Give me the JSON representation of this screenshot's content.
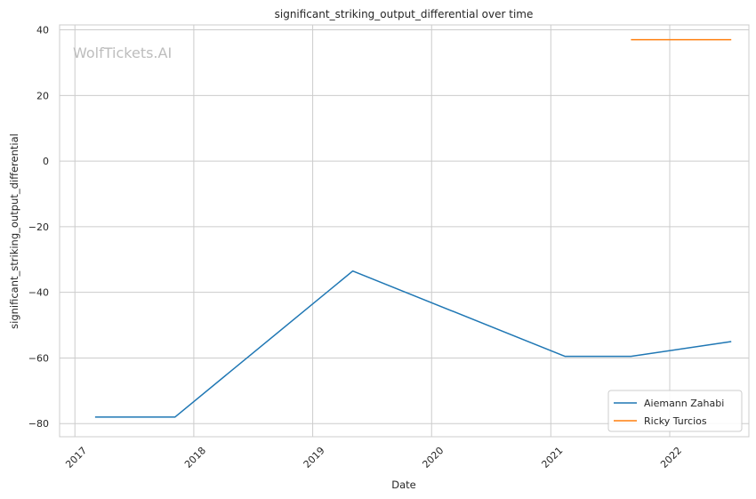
{
  "chart_data": {
    "type": "line",
    "title": "significant_striking_output_differential over time",
    "xlabel": "Date",
    "ylabel": "significant_striking_output_differential",
    "x_ticks": [
      "2017",
      "2018",
      "2019",
      "2020",
      "2021",
      "2022"
    ],
    "y_ticks": [
      40,
      20,
      0,
      -20,
      -40,
      -60,
      -80
    ],
    "xlim": [
      "2016-11-15",
      "2022-09-01"
    ],
    "ylim": [
      -84,
      41.5
    ],
    "grid": true,
    "legend_position": "lower-right",
    "watermark": "WolfTickets.AI",
    "series": [
      {
        "name": "Aiemann Zahabi",
        "color": "#1f77b4",
        "points": [
          {
            "x": "2017-03-04",
            "y": -78
          },
          {
            "x": "2017-11-04",
            "y": -78
          },
          {
            "x": "2019-05-04",
            "y": -33.5
          },
          {
            "x": "2021-02-13",
            "y": -59.5
          },
          {
            "x": "2021-09-04",
            "y": -59.5
          },
          {
            "x": "2022-07-09",
            "y": -55
          }
        ]
      },
      {
        "name": "Ricky Turcios",
        "color": "#ff7f0e",
        "points": [
          {
            "x": "2021-09-04",
            "y": 37
          },
          {
            "x": "2022-07-09",
            "y": 37
          }
        ]
      }
    ]
  }
}
